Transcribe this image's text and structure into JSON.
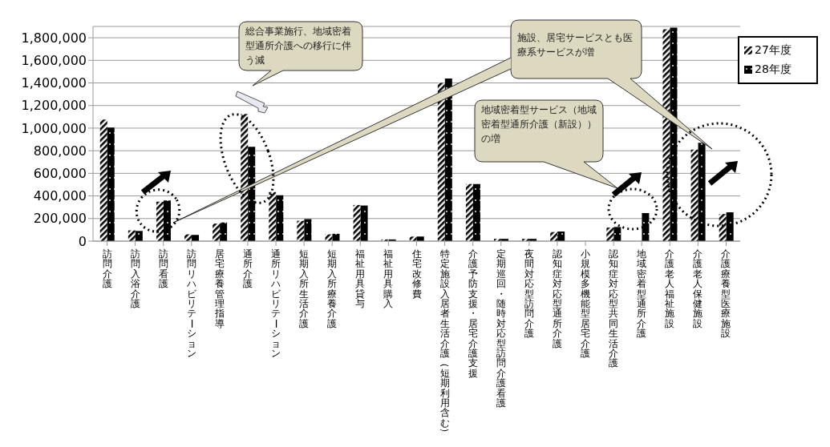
{
  "chart_data": {
    "type": "bar",
    "categories": [
      "訪問介護",
      "訪問入浴介護",
      "訪問看護",
      "訪問リハビリテーション",
      "居宅療養管理指導",
      "通所介護",
      "通所リハビリテーション",
      "短期入所生活介護",
      "短期入所療養介護",
      "福祉用具貸与",
      "福祉用具購入",
      "住宅改修費",
      "特定施設入居者生活介護（短期利用含む）",
      "介護予防支援・居宅介護支援",
      "定期巡回・随時対応型訪問介護看護",
      "夜間対応型訪問介護",
      "認知症対応型通所介護",
      "小規模多機能型居宅介護",
      "認知症対応型共同生活介護",
      "地域密着型通所介護",
      "介護老人福祉施設",
      "介護老人保健施設",
      "介護療養型医療施設"
    ],
    "series": [
      {
        "name": "27年度",
        "color": "#000000",
        "values": [
          1075000,
          95000,
          350000,
          60000,
          155000,
          1125000,
          435000,
          180000,
          60000,
          320000,
          15000,
          40000,
          1400000,
          505000,
          20000,
          20000,
          80000,
          0,
          120000,
          0,
          1875000,
          810000,
          240000
        ]
      },
      {
        "name": "28年度",
        "color": "#000000",
        "values": [
          1005000,
          90000,
          360000,
          55000,
          165000,
          835000,
          405000,
          195000,
          65000,
          315000,
          15000,
          40000,
          1440000,
          505000,
          20000,
          20000,
          85000,
          0,
          125000,
          248000,
          1890000,
          870000,
          255000
        ]
      }
    ],
    "ylim": [
      0,
      1900000
    ],
    "yticks": [
      0,
      {
        "value": 200000,
        "label": "200,000"
      },
      {
        "value": 400000,
        "label": "400,000"
      },
      {
        "value": 600000,
        "label": "600,000"
      },
      {
        "value": 800000,
        "label": "800,000"
      },
      {
        "value": 1000000,
        "label": "1,000,000"
      },
      {
        "value": 1200000,
        "label": "1,200,000"
      },
      {
        "value": 1400000,
        "label": "1,400,000"
      },
      {
        "value": 1600000,
        "label": "1,600,000"
      },
      {
        "value": 1800000,
        "label": "1,800,000"
      }
    ],
    "grid": "y",
    "legend": "top right",
    "annotations": [
      "総合事業施行、地域密着型通所介護への移行に伴う減",
      "施設、居宅サービスとも医療系サービスが増",
      "地域密着型サービス（地域密着型通所介護（新設））の増"
    ]
  }
}
